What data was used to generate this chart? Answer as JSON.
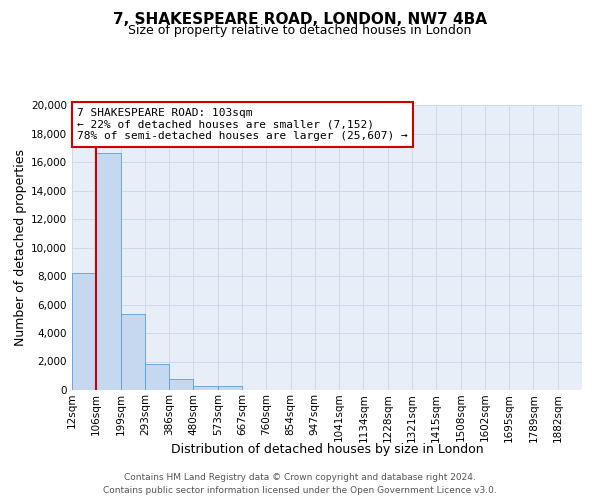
{
  "title_line1": "7, SHAKESPEARE ROAD, LONDON, NW7 4BA",
  "title_line2": "Size of property relative to detached houses in London",
  "xlabel": "Distribution of detached houses by size in London",
  "ylabel": "Number of detached properties",
  "bar_labels": [
    "12sqm",
    "106sqm",
    "199sqm",
    "293sqm",
    "386sqm",
    "480sqm",
    "573sqm",
    "667sqm",
    "760sqm",
    "854sqm",
    "947sqm",
    "1041sqm",
    "1134sqm",
    "1228sqm",
    "1321sqm",
    "1415sqm",
    "1508sqm",
    "1602sqm",
    "1695sqm",
    "1789sqm",
    "1882sqm"
  ],
  "bar_values": [
    8200,
    16600,
    5300,
    1850,
    800,
    300,
    300,
    0,
    0,
    0,
    0,
    0,
    0,
    0,
    0,
    0,
    0,
    0,
    0,
    0,
    0
  ],
  "bar_color": "#c5d8f0",
  "bar_edge_color": "#5a9fd4",
  "vline_x": 1,
  "vline_color": "#cc0000",
  "annotation_line1": "7 SHAKESPEARE ROAD: 103sqm",
  "annotation_line2": "← 22% of detached houses are smaller (7,152)",
  "annotation_line3": "78% of semi-detached houses are larger (25,607) →",
  "annotation_box_color": "#cc0000",
  "ylim": [
    0,
    20000
  ],
  "yticks": [
    0,
    2000,
    4000,
    6000,
    8000,
    10000,
    12000,
    14000,
    16000,
    18000,
    20000
  ],
  "grid_color": "#ccd6e8",
  "background_color": "#e8eef8",
  "footer_line1": "Contains HM Land Registry data © Crown copyright and database right 2024.",
  "footer_line2": "Contains public sector information licensed under the Open Government Licence v3.0.",
  "title_fontsize": 11,
  "subtitle_fontsize": 9,
  "axis_label_fontsize": 9,
  "tick_fontsize": 7.5,
  "footer_fontsize": 6.5,
  "annotation_fontsize": 8
}
